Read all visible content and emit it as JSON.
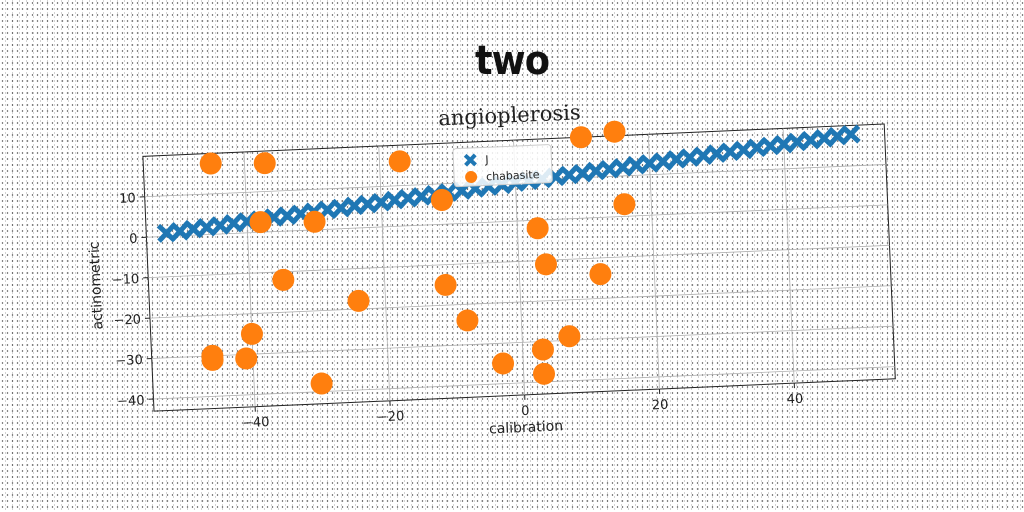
{
  "heading": "two",
  "chart_data": {
    "type": "scatter",
    "title": "angioplerosis",
    "xlabel": "calibration",
    "ylabel": "actinometric",
    "xlim": [
      -55,
      55
    ],
    "ylim": [
      -43,
      20
    ],
    "xticks": [
      -40,
      -20,
      0,
      20,
      40
    ],
    "yticks": [
      -40,
      -30,
      -20,
      -10,
      0,
      10
    ],
    "grid": true,
    "legend": "top-center",
    "series": [
      {
        "name": "J",
        "marker": "x",
        "color": "#1f77b4",
        "x": [
          -52,
          -50,
          -48,
          -46,
          -44,
          -42,
          -40,
          -38,
          -36,
          -34,
          -32,
          -30,
          -28,
          -26,
          -24,
          -22,
          -20,
          -18,
          -16,
          -14,
          -12,
          -10,
          -8,
          -6,
          -4,
          -2,
          0,
          2,
          4,
          6,
          8,
          10,
          12,
          14,
          16,
          18,
          20,
          22,
          24,
          26,
          28,
          30,
          32,
          34,
          36,
          38,
          40,
          42,
          44,
          46,
          48,
          50
        ],
        "y": [
          0.8,
          1.1,
          1.5,
          1.8,
          2.1,
          2.5,
          2.8,
          3.1,
          3.5,
          3.8,
          4.1,
          4.5,
          4.8,
          5.1,
          5.5,
          5.8,
          6.1,
          6.5,
          6.8,
          7.1,
          7.5,
          7.8,
          8.1,
          8.5,
          8.8,
          9.1,
          9.5,
          9.8,
          10.1,
          10.5,
          10.8,
          11.1,
          11.5,
          11.8,
          12.1,
          12.5,
          12.8,
          13.1,
          13.5,
          13.8,
          14.1,
          14.5,
          14.8,
          15.1,
          15.5,
          15.8,
          16.1,
          16.5,
          16.8,
          17.1,
          17.5,
          17.8
        ]
      },
      {
        "name": "chabasite",
        "marker": "o",
        "color": "#ff7f0e",
        "x": [
          -45,
          -37,
          -17,
          10,
          15,
          -11,
          -38,
          -30,
          16,
          3,
          -35,
          4,
          12,
          -24,
          -11,
          -40,
          -8,
          -46,
          -46,
          -41,
          7,
          3,
          -3,
          -30,
          3
        ],
        "y": [
          17.5,
          17,
          16,
          20,
          21,
          6,
          2.5,
          2,
          3,
          -2,
          -12,
          -11,
          -14,
          -18,
          -15,
          -25,
          -24,
          -30,
          -31,
          -31,
          -29,
          -32,
          -35,
          -38,
          -38
        ]
      }
    ]
  }
}
